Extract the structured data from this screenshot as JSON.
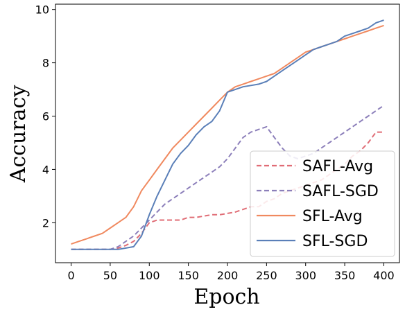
{
  "chart_data": {
    "type": "line",
    "title": "",
    "xlabel": "Epoch",
    "ylabel": "Accuracy",
    "xlim": [
      -20,
      420
    ],
    "ylim": [
      0.5,
      10.2
    ],
    "xticks": [
      0,
      50,
      100,
      150,
      200,
      250,
      300,
      350,
      400
    ],
    "yticks": [
      2,
      4,
      6,
      8,
      10
    ],
    "grid": false,
    "legend_position": "lower-right",
    "x": [
      0,
      10,
      20,
      30,
      40,
      50,
      60,
      70,
      80,
      90,
      100,
      110,
      120,
      130,
      140,
      150,
      160,
      170,
      180,
      190,
      200,
      210,
      220,
      230,
      240,
      250,
      260,
      270,
      280,
      290,
      300,
      310,
      320,
      330,
      340,
      350,
      360,
      370,
      380,
      390,
      400
    ],
    "series": [
      {
        "name": "SAFL-Avg",
        "color": "#e06c75",
        "dash": "dashed",
        "values": [
          1.0,
          1.0,
          1.0,
          1.0,
          1.0,
          1.0,
          1.05,
          1.15,
          1.3,
          1.6,
          2.0,
          2.1,
          2.1,
          2.1,
          2.1,
          2.2,
          2.2,
          2.25,
          2.3,
          2.3,
          2.35,
          2.4,
          2.5,
          2.6,
          2.6,
          2.8,
          2.9,
          3.1,
          3.2,
          3.3,
          3.4,
          3.5,
          3.6,
          3.8,
          4.0,
          4.2,
          4.5,
          4.7,
          5.0,
          5.4,
          5.4
        ]
      },
      {
        "name": "SAFL-SGD",
        "color": "#8c7fba",
        "dash": "dashed",
        "values": [
          1.0,
          1.0,
          1.0,
          1.0,
          1.0,
          1.0,
          1.1,
          1.3,
          1.5,
          1.8,
          2.1,
          2.4,
          2.7,
          2.9,
          3.1,
          3.3,
          3.5,
          3.7,
          3.9,
          4.1,
          4.4,
          4.8,
          5.2,
          5.4,
          5.5,
          5.6,
          5.2,
          4.8,
          4.5,
          4.4,
          4.5,
          4.6,
          4.8,
          5.0,
          5.2,
          5.4,
          5.6,
          5.8,
          6.0,
          6.2,
          6.4
        ]
      },
      {
        "name": "SFL-Avg",
        "color": "#f0895f",
        "dash": "solid",
        "values": [
          1.2,
          1.3,
          1.4,
          1.5,
          1.6,
          1.8,
          2.0,
          2.2,
          2.6,
          3.2,
          3.6,
          4.0,
          4.4,
          4.8,
          5.1,
          5.4,
          5.7,
          6.0,
          6.3,
          6.6,
          6.9,
          7.1,
          7.2,
          7.3,
          7.4,
          7.5,
          7.6,
          7.8,
          8.0,
          8.2,
          8.4,
          8.5,
          8.6,
          8.7,
          8.8,
          8.9,
          9.0,
          9.1,
          9.2,
          9.3,
          9.4
        ]
      },
      {
        "name": "SFL-SGD",
        "color": "#5a7fb8",
        "dash": "solid",
        "values": [
          1.0,
          1.0,
          1.0,
          1.0,
          1.0,
          1.0,
          1.0,
          1.05,
          1.1,
          1.5,
          2.3,
          3.0,
          3.6,
          4.2,
          4.6,
          4.9,
          5.3,
          5.6,
          5.8,
          6.2,
          6.9,
          7.0,
          7.1,
          7.15,
          7.2,
          7.3,
          7.5,
          7.7,
          7.9,
          8.1,
          8.3,
          8.5,
          8.6,
          8.7,
          8.8,
          9.0,
          9.1,
          9.2,
          9.3,
          9.5,
          9.6
        ]
      }
    ]
  }
}
